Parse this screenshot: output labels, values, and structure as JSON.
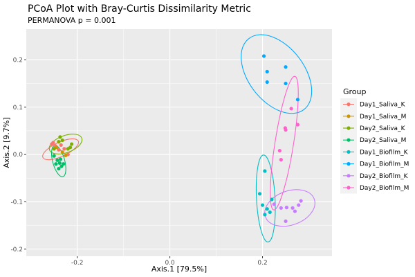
{
  "chart_data": {
    "type": "scatter",
    "title": "PCoA Plot with Bray-Curtis Dissimilarity Metric",
    "subtitle": "PERMANOVA p = 0.001",
    "xlabel": "Axis.1   [79.5%]",
    "ylabel": "Axis.2   [9.7%]",
    "xlim": [
      -0.31,
      0.35
    ],
    "ylim": [
      -0.215,
      0.265
    ],
    "xticks": [
      -0.2,
      0.0,
      0.2
    ],
    "xtick_labels": [
      "-0.2",
      "0.0",
      "0.2"
    ],
    "yticks": [
      -0.2,
      -0.1,
      0.0,
      0.1,
      0.2
    ],
    "ytick_labels": [
      "-0.2",
      "-0.1",
      "0.0",
      "0.1",
      "0.2"
    ],
    "grid": true,
    "legend": {
      "title": "Group",
      "position": "right"
    },
    "series": [
      {
        "name": "Day1_Saliva_K",
        "color": "#F8766D",
        "points": [
          [
            -0.252,
            0.025
          ],
          [
            -0.247,
            0.018
          ],
          [
            -0.235,
            0.02
          ],
          [
            -0.228,
            0.012
          ],
          [
            -0.24,
            0.01
          ],
          [
            -0.22,
            0.0
          ],
          [
            -0.255,
            0.022
          ]
        ],
        "ellipse": {
          "cx": -0.236,
          "cy": 0.011,
          "rx": 0.042,
          "ry": 0.015,
          "angle_deg": -25
        }
      },
      {
        "name": "Day1_Saliva_M",
        "color": "#CD9600",
        "points": [
          [
            -0.245,
            0.015
          ],
          [
            -0.232,
            0.005
          ],
          [
            -0.225,
            -0.002
          ]
        ],
        "ellipse": null
      },
      {
        "name": "Day2_Saliva_K",
        "color": "#7CAE00",
        "points": [
          [
            -0.237,
            0.037
          ],
          [
            -0.24,
            0.027
          ],
          [
            -0.232,
            0.03
          ],
          [
            -0.212,
            0.022
          ],
          [
            -0.215,
            0.015
          ],
          [
            -0.22,
            0.012
          ],
          [
            -0.25,
            0.012
          ]
        ],
        "ellipse": {
          "cx": -0.225,
          "cy": 0.022,
          "rx": 0.037,
          "ry": 0.018,
          "angle_deg": -20
        }
      },
      {
        "name": "Day2_Saliva_M",
        "color": "#00BE67",
        "points": [
          [
            -0.243,
            -0.012
          ],
          [
            -0.246,
            -0.02
          ],
          [
            -0.238,
            -0.018
          ],
          [
            -0.24,
            -0.03
          ],
          [
            -0.234,
            -0.025
          ],
          [
            -0.25,
            -0.003
          ],
          [
            -0.236,
            -0.01
          ],
          [
            -0.23,
            -0.02
          ]
        ],
        "ellipse": {
          "cx": -0.24,
          "cy": -0.014,
          "rx": 0.013,
          "ry": 0.034,
          "angle_deg": -15
        }
      },
      {
        "name": "Day1_Biofilm_K",
        "color": "#00BFC4",
        "points": [
          [
            0.205,
            -0.035
          ],
          [
            0.194,
            -0.083
          ],
          [
            0.2,
            -0.107
          ],
          [
            0.22,
            -0.095
          ],
          [
            0.21,
            -0.115
          ],
          [
            0.205,
            -0.127
          ],
          [
            0.216,
            -0.122
          ]
        ],
        "ellipse": {
          "cx": 0.207,
          "cy": -0.093,
          "rx": 0.02,
          "ry": 0.092,
          "angle_deg": -3
        }
      },
      {
        "name": "Day1_Biofilm_M",
        "color": "#00A9FF",
        "points": [
          [
            0.203,
            0.208
          ],
          [
            0.21,
            0.175
          ],
          [
            0.21,
            0.153
          ],
          [
            0.25,
            0.185
          ],
          [
            0.25,
            0.15
          ],
          [
            0.276,
            0.116
          ]
        ],
        "ellipse": {
          "cx": 0.23,
          "cy": 0.17,
          "rx": 0.06,
          "ry": 0.095,
          "angle_deg": -38
        }
      },
      {
        "name": "Day2_Biofilm_K",
        "color": "#C77CFF",
        "points": [
          [
            0.225,
            -0.105
          ],
          [
            0.24,
            -0.113
          ],
          [
            0.252,
            -0.112
          ],
          [
            0.265,
            -0.113
          ],
          [
            0.278,
            -0.107
          ],
          [
            0.283,
            -0.098
          ],
          [
            0.27,
            -0.12
          ],
          [
            0.25,
            -0.141
          ]
        ],
        "ellipse": {
          "cx": 0.259,
          "cy": -0.113,
          "rx": 0.056,
          "ry": 0.036,
          "angle_deg": -20
        }
      },
      {
        "name": "Day2_Biofilm_M",
        "color": "#FF61CC",
        "points": [
          [
            0.262,
            0.097
          ],
          [
            0.276,
            0.063
          ],
          [
            0.249,
            0.056
          ],
          [
            0.25,
            0.052
          ],
          [
            0.237,
            0.008
          ],
          [
            0.24,
            -0.011
          ]
        ],
        "ellipse": {
          "cx": 0.247,
          "cy": 0.024,
          "rx": 0.02,
          "ry": 0.143,
          "angle_deg": 9
        }
      }
    ]
  }
}
